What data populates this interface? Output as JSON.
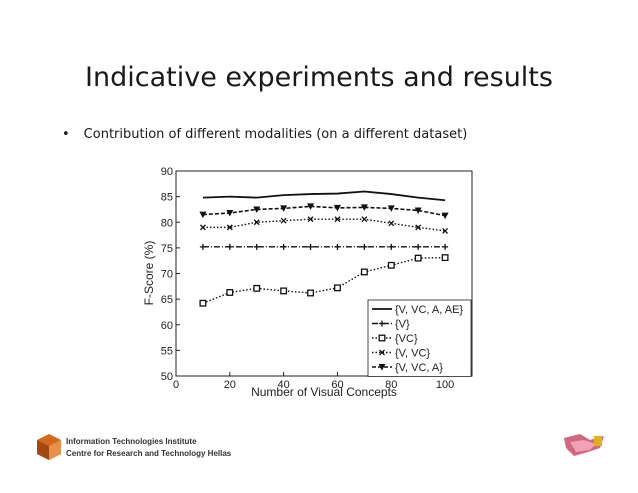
{
  "slide": {
    "title": "Indicative experiments and results",
    "bullet": "Contribution of different modalities (on a different dataset)"
  },
  "footer": {
    "line1": "Information Technologies Institute",
    "line2": "Centre for Research and Technology Hellas"
  },
  "colors": {
    "text": "#1a1a1a",
    "line": "#111111",
    "logo_orange": "#d2691e"
  },
  "chart_data": {
    "type": "line",
    "title": "",
    "xlabel": "Number of Visual Concepts",
    "ylabel": "F-Score (%)",
    "xlim": [
      0,
      110
    ],
    "ylim": [
      50,
      90
    ],
    "xticks": [
      0,
      20,
      40,
      60,
      80,
      100
    ],
    "yticks": [
      50,
      55,
      60,
      65,
      70,
      75,
      80,
      85,
      90
    ],
    "x": [
      10,
      20,
      30,
      40,
      50,
      60,
      70,
      80,
      90,
      100
    ],
    "legend_position": "bottom-right",
    "grid": false,
    "series": [
      {
        "name": "{V, VC, A, AE}",
        "style": "solid",
        "marker": "none",
        "values": [
          84.8,
          85.0,
          84.8,
          85.3,
          85.5,
          85.6,
          86.0,
          85.5,
          84.8,
          84.3
        ]
      },
      {
        "name": "{V}",
        "style": "dashdot",
        "marker": "plus",
        "values": [
          75.2,
          75.2,
          75.2,
          75.2,
          75.2,
          75.2,
          75.2,
          75.2,
          75.2,
          75.2
        ]
      },
      {
        "name": "{VC}",
        "style": "dotted",
        "marker": "square",
        "values": [
          64.2,
          66.3,
          67.1,
          66.6,
          66.2,
          67.2,
          70.3,
          71.6,
          73.0,
          73.1
        ]
      },
      {
        "name": "{V, VC}",
        "style": "dotted",
        "marker": "x",
        "values": [
          79.0,
          79.0,
          80.0,
          80.3,
          80.6,
          80.6,
          80.6,
          79.8,
          79.0,
          78.3
        ]
      },
      {
        "name": "{V, VC, A}",
        "style": "dashed",
        "marker": "triangle-down",
        "values": [
          81.5,
          81.8,
          82.5,
          82.7,
          83.1,
          82.8,
          82.9,
          82.7,
          82.3,
          81.3
        ]
      }
    ]
  }
}
